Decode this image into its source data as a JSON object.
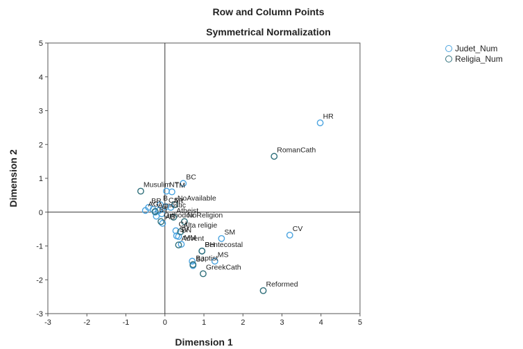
{
  "chart_data": {
    "type": "scatter",
    "title": "Row and Column Points",
    "subtitle": "Symmetrical Normalization",
    "xlabel": "Dimension 1",
    "ylabel": "Dimension 2",
    "xlim": [
      -3,
      5
    ],
    "ylim": [
      -3,
      5
    ],
    "xticks": [
      "-3",
      "-2",
      "-1",
      "0",
      "1",
      "2",
      "3",
      "4",
      "5"
    ],
    "yticks": [
      "-3",
      "-2",
      "-1",
      "0",
      "1",
      "2",
      "3",
      "4",
      "5"
    ],
    "grid": false,
    "reference_lines": {
      "x": 0,
      "y": 0
    },
    "legend_position": "top-right",
    "series": [
      {
        "name": "Judet_Num",
        "color": "#4aa3df",
        "points": [
          {
            "label": "HR",
            "x": 3.98,
            "y": 2.64
          },
          {
            "label": "CV",
            "x": 3.2,
            "y": -0.68
          },
          {
            "label": "BC",
            "x": 0.47,
            "y": 0.85
          },
          {
            "label": "NT",
            "x": 0.04,
            "y": 0.62
          },
          {
            "label": "TM",
            "x": 0.18,
            "y": 0.6
          },
          {
            "label": "B",
            "x": -0.12,
            "y": 0.22
          },
          {
            "label": "CS",
            "x": 0.02,
            "y": 0.16
          },
          {
            "label": "BR",
            "x": -0.42,
            "y": 0.14
          },
          {
            "label": "AG",
            "x": -0.5,
            "y": 0.05
          },
          {
            "label": "AR",
            "x": 0.15,
            "y": 0.14
          },
          {
            "label": "BT",
            "x": -0.22,
            "y": -0.12
          },
          {
            "label": "AB",
            "x": -0.06,
            "y": -0.33
          },
          {
            "label": "CJ",
            "x": 0.28,
            "y": -0.55
          },
          {
            "label": "SV",
            "x": 0.3,
            "y": -0.7
          },
          {
            "label": "BN",
            "x": 0.35,
            "y": -0.72
          },
          {
            "label": "MM",
            "x": 0.42,
            "y": -0.95
          },
          {
            "label": "BH",
            "x": 0.95,
            "y": -1.15
          },
          {
            "label": "SM",
            "x": 1.45,
            "y": -0.78
          },
          {
            "label": "MS",
            "x": 1.28,
            "y": -1.45
          },
          {
            "label": "SJ",
            "x": 0.72,
            "y": -1.58
          },
          {
            "label": "",
            "x": 0.7,
            "y": -1.45
          },
          {
            "label": "",
            "x": -0.3,
            "y": 0.08
          },
          {
            "label": "",
            "x": -0.25,
            "y": 0.0
          },
          {
            "label": "",
            "x": -0.15,
            "y": 0.05
          },
          {
            "label": "",
            "x": -0.08,
            "y": -0.05
          }
        ]
      },
      {
        "name": "Religia_Num",
        "color": "#2f6f7a",
        "points": [
          {
            "label": "RomanCath",
            "x": 2.8,
            "y": 1.65
          },
          {
            "label": "Musulim",
            "x": -0.62,
            "y": 0.62
          },
          {
            "label": "NoAvailable",
            "x": 0.25,
            "y": 0.22
          },
          {
            "label": "Agnostic",
            "x": -0.25,
            "y": 0.02
          },
          {
            "label": "Atheist",
            "x": 0.22,
            "y": -0.15
          },
          {
            "label": "NoReligion",
            "x": 0.5,
            "y": -0.28
          },
          {
            "label": "Orthodox",
            "x": -0.1,
            "y": -0.28
          },
          {
            "label": "Alta religie",
            "x": 0.4,
            "y": -0.58
          },
          {
            "label": "Advent",
            "x": 0.35,
            "y": -0.97
          },
          {
            "label": "Pentecostal",
            "x": 0.95,
            "y": -1.15
          },
          {
            "label": "Baptist",
            "x": 0.72,
            "y": -1.55
          },
          {
            "label": "GreekCath",
            "x": 0.98,
            "y": -1.82
          },
          {
            "label": "Reformed",
            "x": 2.52,
            "y": -2.32
          }
        ]
      }
    ]
  }
}
